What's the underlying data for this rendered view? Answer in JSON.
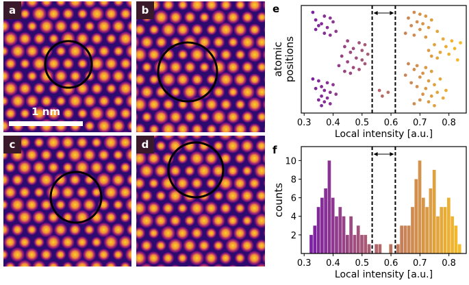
{
  "panels": [
    {
      "label": "a",
      "scalebar_label": "1 nm"
    },
    {
      "label": "b"
    },
    {
      "label": "c"
    },
    {
      "label": "d"
    }
  ],
  "colors": {
    "cmap_low": "#2c0a6e",
    "cmap_mid": "#b5197f",
    "cmap_high": "#fcd224",
    "circle": "#000000"
  },
  "chart_data": [
    {
      "panel_label": "e",
      "type": "scatter",
      "xlabel": "Local intensity [a.u.]",
      "ylabel_lines": [
        "atomic",
        "positions"
      ],
      "xlim": [
        0.29,
        0.86
      ],
      "xticks": [
        0.3,
        0.4,
        0.5,
        0.6,
        0.7,
        0.8
      ],
      "ytick_labels": [],
      "vlines": [
        0.535,
        0.615
      ],
      "arrow": {
        "from": 0.535,
        "to": 0.615,
        "style": "double-headed"
      },
      "points": [
        [
          0.33,
          100
        ],
        [
          0.37,
          96
        ],
        [
          0.39,
          94
        ],
        [
          0.34,
          92
        ],
        [
          0.4,
          90
        ],
        [
          0.36,
          88
        ],
        [
          0.35,
          86
        ],
        [
          0.38,
          84
        ],
        [
          0.34,
          82
        ],
        [
          0.41,
          80
        ],
        [
          0.37,
          78
        ],
        [
          0.39,
          76
        ],
        [
          0.45,
          70
        ],
        [
          0.49,
          68
        ],
        [
          0.51,
          66
        ],
        [
          0.44,
          64
        ],
        [
          0.47,
          62
        ],
        [
          0.5,
          60
        ],
        [
          0.46,
          58
        ],
        [
          0.52,
          56
        ],
        [
          0.43,
          54
        ],
        [
          0.48,
          52
        ],
        [
          0.5,
          50
        ],
        [
          0.45,
          48
        ],
        [
          0.51,
          46
        ],
        [
          0.42,
          44
        ],
        [
          0.47,
          42
        ],
        [
          0.49,
          40
        ],
        [
          0.44,
          38
        ],
        [
          0.46,
          36
        ],
        [
          0.33,
          30
        ],
        [
          0.35,
          28
        ],
        [
          0.38,
          26
        ],
        [
          0.4,
          24
        ],
        [
          0.36,
          22
        ],
        [
          0.34,
          20
        ],
        [
          0.37,
          18
        ],
        [
          0.39,
          16
        ],
        [
          0.41,
          14
        ],
        [
          0.36,
          12
        ],
        [
          0.38,
          10
        ],
        [
          0.35,
          8
        ],
        [
          0.37,
          6
        ],
        [
          0.39,
          4
        ],
        [
          0.36,
          2
        ],
        [
          0.56,
          18
        ],
        [
          0.59,
          16
        ],
        [
          0.57,
          12
        ],
        [
          0.68,
          100
        ],
        [
          0.7,
          98
        ],
        [
          0.72,
          96
        ],
        [
          0.66,
          94
        ],
        [
          0.74,
          92
        ],
        [
          0.69,
          90
        ],
        [
          0.71,
          88
        ],
        [
          0.67,
          86
        ],
        [
          0.73,
          84
        ],
        [
          0.7,
          82
        ],
        [
          0.76,
          80
        ],
        [
          0.65,
          78
        ],
        [
          0.68,
          76
        ],
        [
          0.72,
          74
        ],
        [
          0.78,
          72
        ],
        [
          0.81,
          70
        ],
        [
          0.84,
          68
        ],
        [
          0.75,
          66
        ],
        [
          0.79,
          64
        ],
        [
          0.82,
          62
        ],
        [
          0.73,
          60
        ],
        [
          0.77,
          58
        ],
        [
          0.8,
          56
        ],
        [
          0.74,
          54
        ],
        [
          0.76,
          52
        ],
        [
          0.83,
          50
        ],
        [
          0.66,
          46
        ],
        [
          0.69,
          44
        ],
        [
          0.72,
          42
        ],
        [
          0.68,
          40
        ],
        [
          0.74,
          38
        ],
        [
          0.71,
          36
        ],
        [
          0.65,
          34
        ],
        [
          0.7,
          32
        ],
        [
          0.77,
          30
        ],
        [
          0.73,
          28
        ],
        [
          0.67,
          26
        ],
        [
          0.75,
          24
        ],
        [
          0.69,
          22
        ],
        [
          0.72,
          20
        ],
        [
          0.79,
          18
        ],
        [
          0.76,
          16
        ],
        [
          0.71,
          14
        ],
        [
          0.74,
          12
        ],
        [
          0.78,
          10
        ],
        [
          0.7,
          8
        ],
        [
          0.73,
          6
        ],
        [
          0.68,
          4
        ],
        [
          0.75,
          2
        ]
      ]
    },
    {
      "panel_label": "f",
      "type": "bar",
      "xlabel": "Local intensity [a.u.]",
      "ylabel": "counts",
      "xlim": [
        0.29,
        0.86
      ],
      "ylim": [
        0,
        11.5
      ],
      "xticks": [
        0.3,
        0.4,
        0.5,
        0.6,
        0.7,
        0.8
      ],
      "yticks": [
        2,
        4,
        6,
        8,
        10
      ],
      "vlines": [
        0.535,
        0.615
      ],
      "arrow": {
        "from": 0.535,
        "to": 0.615,
        "style": "double-headed"
      },
      "bin_width": 0.0125,
      "bins": [
        [
          0.325,
          2
        ],
        [
          0.3375,
          3
        ],
        [
          0.35,
          5
        ],
        [
          0.3625,
          6
        ],
        [
          0.375,
          7
        ],
        [
          0.3875,
          10
        ],
        [
          0.4,
          6
        ],
        [
          0.4125,
          4
        ],
        [
          0.425,
          5
        ],
        [
          0.4375,
          4
        ],
        [
          0.45,
          2
        ],
        [
          0.4625,
          4
        ],
        [
          0.475,
          2
        ],
        [
          0.4875,
          3
        ],
        [
          0.5,
          2
        ],
        [
          0.5125,
          2
        ],
        [
          0.525,
          1
        ],
        [
          0.55,
          1
        ],
        [
          0.5625,
          1
        ],
        [
          0.6,
          1
        ],
        [
          0.625,
          1
        ],
        [
          0.6375,
          3
        ],
        [
          0.65,
          3
        ],
        [
          0.6625,
          3
        ],
        [
          0.675,
          5
        ],
        [
          0.6875,
          8
        ],
        [
          0.7,
          10
        ],
        [
          0.7125,
          6
        ],
        [
          0.725,
          5
        ],
        [
          0.7375,
          7
        ],
        [
          0.75,
          9
        ],
        [
          0.7625,
          4
        ],
        [
          0.775,
          5
        ],
        [
          0.7875,
          5
        ],
        [
          0.8,
          6
        ],
        [
          0.8125,
          4
        ],
        [
          0.825,
          3
        ],
        [
          0.8375,
          1
        ]
      ]
    }
  ]
}
